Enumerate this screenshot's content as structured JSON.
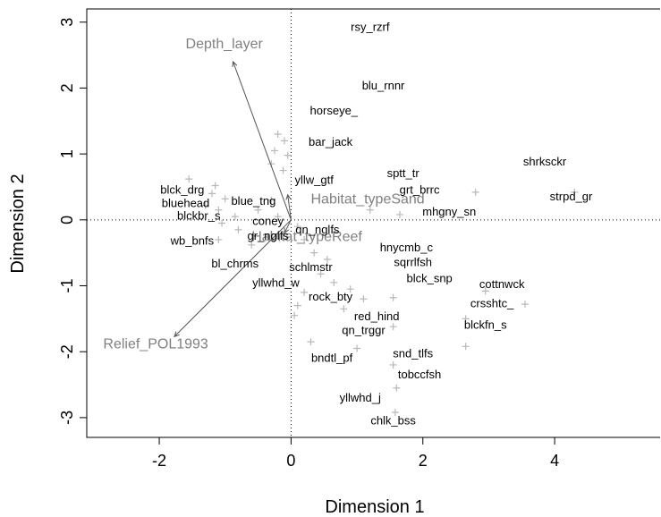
{
  "chart_data": {
    "type": "scatter",
    "title": "",
    "xlabel": "Dimension 1",
    "ylabel": "Dimension 2",
    "xlim": [
      -3.1,
      5.6
    ],
    "ylim": [
      -3.3,
      3.2
    ],
    "xticks": [
      "-2",
      "0",
      "2",
      "4"
    ],
    "xtick_values": [
      -2,
      0,
      2,
      4
    ],
    "yticks": [
      "-3",
      "-2",
      "-1",
      "0",
      "1",
      "2",
      "3"
    ],
    "ytick_values": [
      -3,
      -2,
      -1,
      0,
      1,
      2,
      3
    ],
    "reference_lines": {
      "x": 0,
      "y": 0,
      "style": "dotted"
    },
    "point_marker": "+",
    "point_color": "#b8b8b8",
    "species_label_color": "#000000",
    "env_label_color": "#808080",
    "species": [
      {
        "label": "rsy_rzrf",
        "x": 1.2,
        "y": 2.92
      },
      {
        "label": "blu_rnnr",
        "x": 1.4,
        "y": 2.03
      },
      {
        "label": "horseye_",
        "x": 0.65,
        "y": 1.65
      },
      {
        "label": "bar_jack",
        "x": 0.6,
        "y": 1.18
      },
      {
        "label": "shrksckr",
        "x": 3.85,
        "y": 0.88
      },
      {
        "label": "sptt_tr",
        "x": 1.7,
        "y": 0.7
      },
      {
        "label": "yllw_gtf",
        "x": 0.35,
        "y": 0.6
      },
      {
        "label": "grt_brrc",
        "x": 1.95,
        "y": 0.45
      },
      {
        "label": "strpd_gr",
        "x": 4.25,
        "y": 0.35
      },
      {
        "label": "blck_drg",
        "x": -1.65,
        "y": 0.45
      },
      {
        "label": "bluehead",
        "x": -1.6,
        "y": 0.25
      },
      {
        "label": "blue_tng",
        "x": -0.57,
        "y": 0.28
      },
      {
        "label": "mhgny_sn",
        "x": 2.4,
        "y": 0.12
      },
      {
        "label": "blckbr_s",
        "x": -1.4,
        "y": 0.06
      },
      {
        "label": "coney",
        "x": -0.35,
        "y": -0.02
      },
      {
        "label": "gr_nglfs",
        "x": -0.35,
        "y": -0.25
      },
      {
        "label": "qn_nglfs",
        "x": 0.4,
        "y": -0.15
      },
      {
        "label": "wb_bnfs",
        "x": -1.5,
        "y": -0.32
      },
      {
        "label": "hnycmb_c",
        "x": 1.75,
        "y": -0.42
      },
      {
        "label": "sqrrlfsh",
        "x": 1.85,
        "y": -0.65
      },
      {
        "label": "bl_chrms",
        "x": -0.85,
        "y": -0.67
      },
      {
        "label": "schlmstr",
        "x": 0.3,
        "y": -0.72
      },
      {
        "label": "blck_snp",
        "x": 2.1,
        "y": -0.89
      },
      {
        "label": "yllwhd_w",
        "x": -0.23,
        "y": -0.96
      },
      {
        "label": "cottnwck",
        "x": 3.2,
        "y": -0.98
      },
      {
        "label": "rock_bty",
        "x": 0.6,
        "y": -1.17
      },
      {
        "label": "crsshtc_",
        "x": 3.05,
        "y": -1.27
      },
      {
        "label": "red_hind",
        "x": 1.3,
        "y": -1.47
      },
      {
        "label": "blckfn_s",
        "x": 2.95,
        "y": -1.6
      },
      {
        "label": "qn_trggr",
        "x": 1.1,
        "y": -1.68
      },
      {
        "label": "bndtl_pf",
        "x": 0.62,
        "y": -2.1
      },
      {
        "label": "snd_tlfs",
        "x": 1.85,
        "y": -2.03
      },
      {
        "label": "tobccfsh",
        "x": 1.95,
        "y": -2.35
      },
      {
        "label": "yllwhd_j",
        "x": 1.05,
        "y": -2.7
      },
      {
        "label": "chlk_bss",
        "x": 1.55,
        "y": -3.05
      }
    ],
    "points": [
      {
        "x": -0.2,
        "y": 1.3
      },
      {
        "x": -0.1,
        "y": 1.2
      },
      {
        "x": -0.25,
        "y": 1.05
      },
      {
        "x": -0.05,
        "y": 0.98
      },
      {
        "x": -0.3,
        "y": 0.85
      },
      {
        "x": -0.12,
        "y": 0.75
      },
      {
        "x": -1.55,
        "y": 0.62
      },
      {
        "x": -1.15,
        "y": 0.52
      },
      {
        "x": -1.2,
        "y": 0.4
      },
      {
        "x": -1.0,
        "y": 0.32
      },
      {
        "x": -1.3,
        "y": 0.22
      },
      {
        "x": -1.1,
        "y": 0.15
      },
      {
        "x": -0.85,
        "y": 0.05
      },
      {
        "x": -1.05,
        "y": -0.05
      },
      {
        "x": -0.8,
        "y": -0.15
      },
      {
        "x": -1.1,
        "y": -0.3
      },
      {
        "x": -0.6,
        "y": -0.38
      },
      {
        "x": -0.5,
        "y": 0.15
      },
      {
        "x": -0.3,
        "y": 0.3
      },
      {
        "x": -0.2,
        "y": 0.05
      },
      {
        "x": 0.1,
        "y": -0.1
      },
      {
        "x": 0.2,
        "y": -0.3
      },
      {
        "x": 0.35,
        "y": -0.5
      },
      {
        "x": 0.55,
        "y": -0.6
      },
      {
        "x": 0.45,
        "y": -0.82
      },
      {
        "x": 0.2,
        "y": -1.1
      },
      {
        "x": 0.1,
        "y": -1.3
      },
      {
        "x": 0.05,
        "y": -1.45
      },
      {
        "x": 0.65,
        "y": -0.95
      },
      {
        "x": 0.9,
        "y": -1.05
      },
      {
        "x": 1.1,
        "y": -1.2
      },
      {
        "x": 0.8,
        "y": -1.35
      },
      {
        "x": 1.55,
        "y": -1.18
      },
      {
        "x": 1.55,
        "y": -1.62
      },
      {
        "x": 0.3,
        "y": -1.85
      },
      {
        "x": 1.0,
        "y": -1.95
      },
      {
        "x": 1.55,
        "y": -2.2
      },
      {
        "x": 1.6,
        "y": -2.55
      },
      {
        "x": 1.58,
        "y": -2.92
      },
      {
        "x": 2.65,
        "y": -1.5
      },
      {
        "x": 2.65,
        "y": -1.92
      },
      {
        "x": 2.95,
        "y": -1.08
      },
      {
        "x": 3.55,
        "y": -1.28
      },
      {
        "x": 2.8,
        "y": 0.42
      },
      {
        "x": 4.3,
        "y": 0.42
      },
      {
        "x": 1.65,
        "y": 0.08
      },
      {
        "x": 1.2,
        "y": 0.15
      }
    ],
    "env_vectors": [
      {
        "label": "Depth_layer",
        "x": -0.88,
        "y": 2.4,
        "label_x": -1.6,
        "label_y": 2.6
      },
      {
        "label": "Habitat_typeSand",
        "x": -0.05,
        "y": 0.38,
        "label_x": 0.3,
        "label_y": 0.25
      },
      {
        "label": "Habitat_typeReef",
        "x": -0.1,
        "y": -0.2,
        "label_x": -0.6,
        "label_y": -0.32
      },
      {
        "label": "Relief_POL1993",
        "x": -1.77,
        "y": -1.77,
        "label_x": -2.85,
        "label_y": -1.95
      }
    ]
  }
}
